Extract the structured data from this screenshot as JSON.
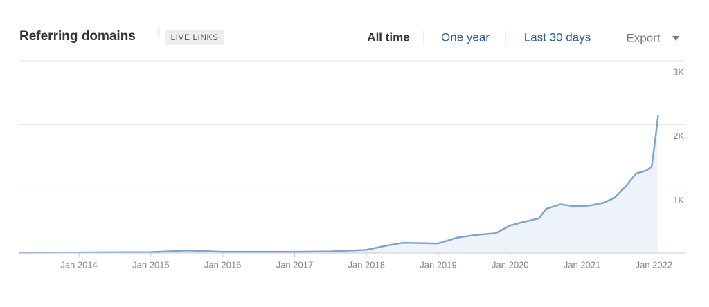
{
  "header": {
    "title": "Referring domains",
    "info": "i",
    "badge": "LIVE LINKS",
    "tabs": [
      "All time",
      "One year",
      "Last 30 days"
    ],
    "export": "Export"
  },
  "chart_data": {
    "type": "area",
    "x": [
      2013.17,
      2014,
      2015,
      2015.5,
      2016,
      2017,
      2017.5,
      2018,
      2018.25,
      2018.5,
      2019,
      2019.26,
      2019.5,
      2019.8,
      2020,
      2020.2,
      2020.4,
      2020.5,
      2020.7,
      2020.9,
      2021.1,
      2021.3,
      2021.45,
      2021.6,
      2021.75,
      2021.9,
      2021.97,
      2022.02,
      2022.06
    ],
    "values": [
      5,
      10,
      15,
      40,
      20,
      20,
      25,
      50,
      110,
      160,
      150,
      240,
      280,
      310,
      430,
      490,
      540,
      690,
      760,
      730,
      740,
      785,
      860,
      1030,
      1240,
      1290,
      1350,
      1780,
      2150
    ],
    "color": "#7ba4d6",
    "fill": "#eef3fa",
    "xlim": [
      2013.17,
      2022.44
    ],
    "xticks": [
      {
        "value": 2014,
        "label": "Jan 2014"
      },
      {
        "value": 2015,
        "label": "Jan 2015"
      },
      {
        "value": 2016,
        "label": "Jan 2016"
      },
      {
        "value": 2017,
        "label": "Jan 2017"
      },
      {
        "value": 2018,
        "label": "Jan 2018"
      },
      {
        "value": 2019,
        "label": "Jan 2019"
      },
      {
        "value": 2020,
        "label": "Jan 2020"
      },
      {
        "value": 2021,
        "label": "Jan 2021"
      },
      {
        "value": 2022,
        "label": "Jan 2022"
      }
    ],
    "ylim": [
      0,
      3000
    ],
    "yticks": [
      {
        "value": 1000,
        "label": "1K"
      },
      {
        "value": 2000,
        "label": "2K"
      },
      {
        "value": 3000,
        "label": "3K"
      }
    ],
    "grid": true
  }
}
